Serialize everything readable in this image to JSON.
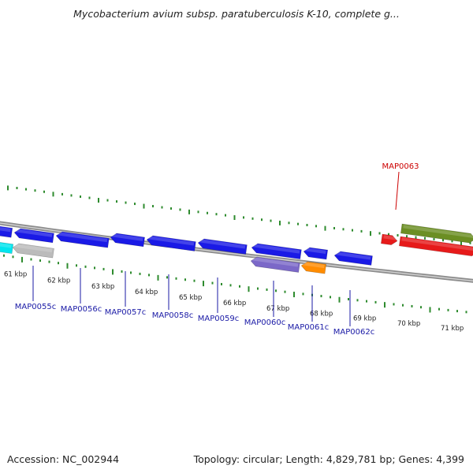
{
  "header": {
    "title": "Mycobacterium avium subsp. paratuberculosis K-10, complete g..."
  },
  "footer": {
    "accession_label": "Accession:",
    "accession": "NC_002944",
    "topology_label": "Topology:",
    "topology": "circular",
    "length_label": "Length:",
    "length": "4,829,781 bp",
    "genes_label": "Genes:",
    "genes": "4,399"
  },
  "colors": {
    "backbone": "#8c8c8c",
    "tick": "#2e8b2e",
    "gene_blue": "#1a1ae6",
    "gene_red": "#e61a1a",
    "feature_green": "#6b8e23",
    "feature_purple": "#7b68c8",
    "feature_orange": "#ff8c00",
    "feature_cyan": "#00e5ee",
    "feature_grey": "#bbbbbb",
    "label_blue": "#1a1aa6",
    "label_red": "#cc0000"
  },
  "scale": {
    "kbp_labels": [
      "61 kbp",
      "62 kbp",
      "63 kbp",
      "64 kbp",
      "65 kbp",
      "66 kbp",
      "67 kbp",
      "68 kbp",
      "69 kbp",
      "70 kbp",
      "71 kbp"
    ]
  },
  "features": [
    {
      "name": "gene-blue",
      "label": "",
      "color": "gene_blue",
      "strand": "reverse"
    },
    {
      "name": "gene-blue",
      "label": "MAP0055c",
      "color": "gene_blue",
      "strand": "reverse"
    },
    {
      "name": "gene-blue",
      "label": "MAP0056c",
      "color": "gene_blue",
      "strand": "reverse"
    },
    {
      "name": "gene-blue",
      "label": "MAP0057c",
      "color": "gene_blue",
      "strand": "reverse"
    },
    {
      "name": "gene-blue",
      "label": "MAP0058c",
      "color": "gene_blue",
      "strand": "reverse"
    },
    {
      "name": "gene-blue",
      "label": "MAP0059c",
      "color": "gene_blue",
      "strand": "reverse"
    },
    {
      "name": "gene-blue",
      "label": "MAP0060c",
      "color": "gene_blue",
      "strand": "reverse"
    },
    {
      "name": "gene-blue",
      "label": "MAP0061c",
      "color": "gene_blue",
      "strand": "reverse"
    },
    {
      "name": "gene-blue",
      "label": "MAP0062c",
      "color": "gene_blue",
      "strand": "reverse"
    },
    {
      "name": "gene-red",
      "label": "MAP0063",
      "color": "gene_red",
      "strand": "forward"
    },
    {
      "name": "gene-red-long",
      "label": "",
      "color": "gene_red",
      "strand": "forward"
    },
    {
      "name": "feature-green",
      "label": "",
      "color": "feature_green",
      "strand": "forward"
    },
    {
      "name": "feature-cyan",
      "label": "",
      "color": "feature_cyan",
      "strand": "reverse"
    },
    {
      "name": "feature-grey",
      "label": "",
      "color": "feature_grey",
      "strand": "reverse"
    },
    {
      "name": "feature-purple",
      "label": "",
      "color": "feature_purple",
      "strand": "reverse"
    },
    {
      "name": "feature-orange",
      "label": "",
      "color": "feature_orange",
      "strand": "reverse"
    }
  ]
}
